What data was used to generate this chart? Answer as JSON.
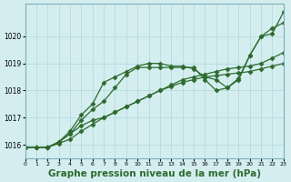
{
  "background_color": "#d4eef0",
  "grid_color": "#b0d8dc",
  "line_color": "#2d6b2d",
  "marker_color": "#2d6b2d",
  "xlabel": "Graphe pression niveau de la mer (hPa)",
  "xlabel_fontsize": 7.5,
  "ylim": [
    1015.5,
    1021.2
  ],
  "xlim": [
    0,
    23
  ],
  "yticks": [
    1016,
    1017,
    1018,
    1019,
    1020
  ],
  "xticks": [
    0,
    1,
    2,
    3,
    4,
    5,
    6,
    7,
    8,
    9,
    10,
    11,
    12,
    13,
    14,
    15,
    16,
    17,
    18,
    19,
    20,
    21,
    22,
    23
  ],
  "line1_x": [
    0,
    1,
    2,
    3,
    4,
    5,
    6,
    7,
    8,
    9,
    10,
    11,
    12,
    13,
    14,
    15,
    16,
    17,
    18,
    19,
    20,
    21,
    22,
    23
  ],
  "line1_y": [
    1015.9,
    1015.9,
    1015.9,
    1016.1,
    1016.5,
    1017.1,
    1017.5,
    1018.3,
    1018.5,
    1018.7,
    1018.9,
    1019.0,
    1019.0,
    1018.9,
    1018.9,
    1018.8,
    1018.5,
    1018.4,
    1018.1,
    1018.4,
    1019.3,
    1020.0,
    1020.3,
    1020.5
  ],
  "line2_x": [
    0,
    1,
    2,
    3,
    4,
    5,
    6,
    7,
    8,
    9,
    10,
    11,
    12,
    13,
    14,
    15,
    16,
    17,
    18,
    19,
    20,
    21,
    22,
    23
  ],
  "line2_y": [
    1015.9,
    1015.9,
    1015.9,
    1016.1,
    1016.4,
    1016.7,
    1016.9,
    1017.0,
    1017.2,
    1017.4,
    1017.6,
    1017.8,
    1018.0,
    1018.2,
    1018.4,
    1018.5,
    1018.6,
    1018.7,
    1018.8,
    1018.85,
    1018.9,
    1019.0,
    1019.2,
    1019.4
  ],
  "line3_x": [
    0,
    1,
    2,
    3,
    4,
    5,
    6,
    7,
    8,
    9,
    10,
    11,
    12,
    13,
    14,
    15,
    16,
    17,
    18,
    19,
    20,
    21,
    22,
    23
  ],
  "line3_y": [
    1015.9,
    1015.9,
    1015.9,
    1016.05,
    1016.2,
    1016.5,
    1016.75,
    1017.0,
    1017.2,
    1017.4,
    1017.6,
    1017.8,
    1018.0,
    1018.15,
    1018.3,
    1018.4,
    1018.5,
    1018.55,
    1018.6,
    1018.65,
    1018.7,
    1018.8,
    1018.9,
    1019.0
  ],
  "line4_x": [
    2,
    3,
    4,
    5,
    6,
    7,
    8,
    9,
    10,
    11,
    12,
    13,
    14,
    15,
    16,
    17,
    18,
    19,
    20,
    21,
    22,
    23
  ],
  "line4_y": [
    1015.9,
    1016.1,
    1016.4,
    1016.9,
    1017.3,
    1017.6,
    1018.1,
    1018.6,
    1018.85,
    1018.85,
    1018.85,
    1018.85,
    1018.85,
    1018.85,
    1018.4,
    1018.0,
    1018.1,
    1018.45,
    1019.3,
    1020.0,
    1020.1,
    1020.9
  ]
}
